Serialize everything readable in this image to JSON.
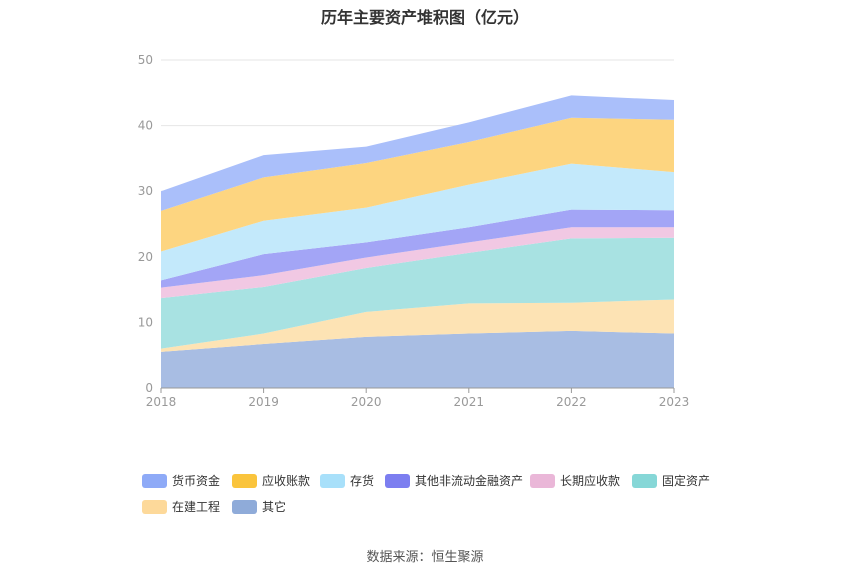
{
  "title": "历年主要资产堆积图（亿元）",
  "source": "数据来源：恒生聚源",
  "chart_data": {
    "type": "area",
    "stacked": true,
    "x": [
      "2018",
      "2019",
      "2020",
      "2021",
      "2022",
      "2023"
    ],
    "ylim": [
      0,
      50
    ],
    "yticks": [
      0,
      10,
      20,
      30,
      40,
      50
    ],
    "grid": true,
    "legend_position": "bottom",
    "series": [
      {
        "name": "其它",
        "color": "#a8bde3",
        "values": [
          5.5,
          6.7,
          7.8,
          8.3,
          8.7,
          8.3
        ]
      },
      {
        "name": "在建工程",
        "color": "#fde3b4",
        "values": [
          0.5,
          1.6,
          3.8,
          4.6,
          4.3,
          5.2
        ]
      },
      {
        "name": "固定资产",
        "color": "#a8e2e2",
        "values": [
          7.7,
          7.1,
          6.7,
          7.7,
          9.8,
          9.4
        ]
      },
      {
        "name": "长期应收款",
        "color": "#f1c8e3",
        "values": [
          1.6,
          1.8,
          1.6,
          1.6,
          1.7,
          1.6
        ]
      },
      {
        "name": "其他非流动金融资产",
        "color": "#a3a5f6",
        "values": [
          1.1,
          3.2,
          2.3,
          2.3,
          2.7,
          2.6
        ]
      },
      {
        "name": "存货",
        "color": "#c3e9fb",
        "values": [
          4.4,
          5.1,
          5.3,
          6.5,
          7.0,
          5.8
        ]
      },
      {
        "name": "应收账款",
        "color": "#fdd580",
        "values": [
          6.2,
          6.6,
          6.8,
          6.5,
          7.0,
          8.0
        ]
      },
      {
        "name": "货币资金",
        "color": "#aabffa",
        "values": [
          3.0,
          3.4,
          2.5,
          3.0,
          3.4,
          3.0
        ]
      }
    ]
  },
  "legend": [
    {
      "label": "货币资金",
      "color": "#8eaaf7"
    },
    {
      "label": "应收账款",
      "color": "#fac43c"
    },
    {
      "label": "存货",
      "color": "#a8e0fa"
    },
    {
      "label": "其他非流动金融资产",
      "color": "#7c7ef0"
    },
    {
      "label": "长期应收款",
      "color": "#eab7d8"
    },
    {
      "label": "固定资产",
      "color": "#86d7d7"
    },
    {
      "label": "在建工程",
      "color": "#fdd99a"
    },
    {
      "label": "其它",
      "color": "#8fabd9"
    }
  ]
}
